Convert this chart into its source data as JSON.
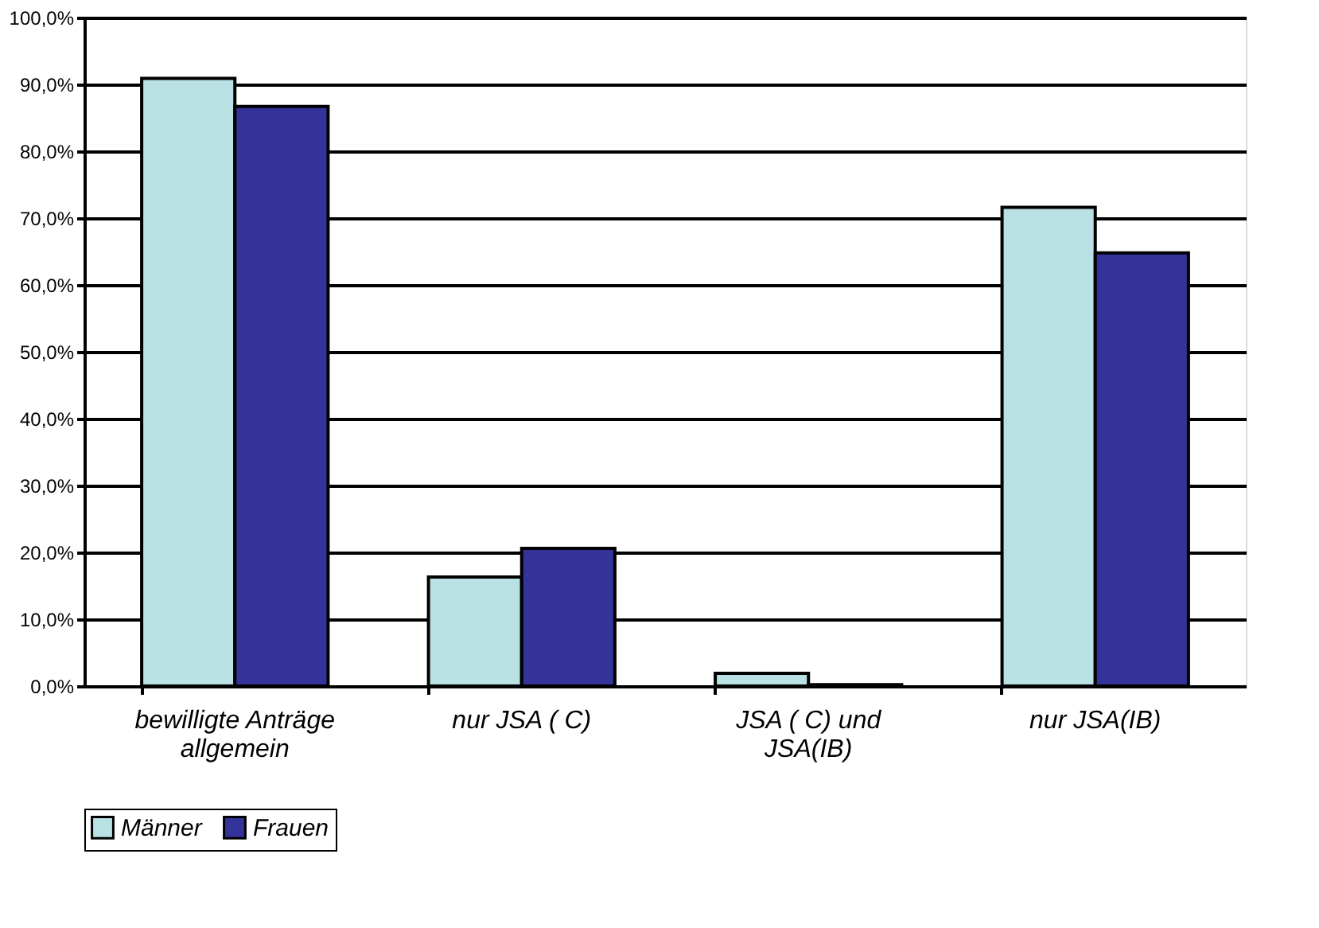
{
  "chart_data": {
    "type": "bar",
    "categories": [
      "bewilligte Anträge\nallgemein",
      "nur JSA ( C)",
      "JSA ( C) und\nJSA(IB)",
      "nur JSA(IB)"
    ],
    "series": [
      {
        "name": "Männer",
        "color": "#b9e0e3",
        "values": [
          90.9,
          16.3,
          1.9,
          71.6
        ]
      },
      {
        "name": "Frauen",
        "color": "#333399",
        "values": [
          86.7,
          20.6,
          0.2,
          64.8
        ]
      }
    ],
    "ylim": [
      0,
      100
    ],
    "yticks": [
      {
        "value": 0,
        "label": "0,0%"
      },
      {
        "value": 10,
        "label": "10,0%"
      },
      {
        "value": 20,
        "label": "20,0%"
      },
      {
        "value": 30,
        "label": "30,0%"
      },
      {
        "value": 40,
        "label": "40,0%"
      },
      {
        "value": 50,
        "label": "50,0%"
      },
      {
        "value": 60,
        "label": "60,0%"
      },
      {
        "value": 70,
        "label": "70,0%"
      },
      {
        "value": 80,
        "label": "80,0%"
      },
      {
        "value": 90,
        "label": "90,0%"
      },
      {
        "value": 100,
        "label": "100,0%"
      }
    ],
    "grid": "y",
    "legend": "bottom"
  }
}
